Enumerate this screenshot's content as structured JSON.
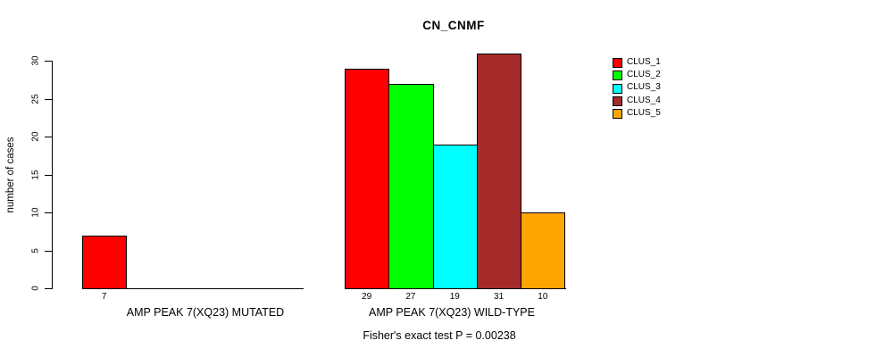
{
  "chart_data": {
    "type": "bar",
    "title": "CN_CNMF",
    "xlabel": "",
    "ylabel": "number of cases",
    "ylim": [
      0,
      30
    ],
    "yticks": [
      0,
      5,
      10,
      15,
      20,
      25,
      30
    ],
    "grid": false,
    "legend_position": "right",
    "categories": [
      "AMP PEAK 7(XQ23) MUTATED",
      "AMP PEAK 7(XQ23) WILD-TYPE"
    ],
    "series": [
      {
        "name": "CLUS_1",
        "color": "#FF0000",
        "values": [
          7,
          29
        ]
      },
      {
        "name": "CLUS_2",
        "color": "#00FF00",
        "values": [
          0,
          27
        ]
      },
      {
        "name": "CLUS_3",
        "color": "#00FFFF",
        "values": [
          0,
          19
        ]
      },
      {
        "name": "CLUS_4",
        "color": "#A52A2A",
        "values": [
          0,
          31
        ]
      },
      {
        "name": "CLUS_5",
        "color": "#FFA500",
        "values": [
          0,
          10
        ]
      }
    ],
    "bar_value_labels": [
      [
        7,
        null,
        null,
        null,
        null
      ],
      [
        29,
        27,
        19,
        31,
        10
      ]
    ],
    "annotation": "Fisher's exact test P = 0.00238",
    "text_color": "#000000",
    "axis_color": "#000000"
  }
}
